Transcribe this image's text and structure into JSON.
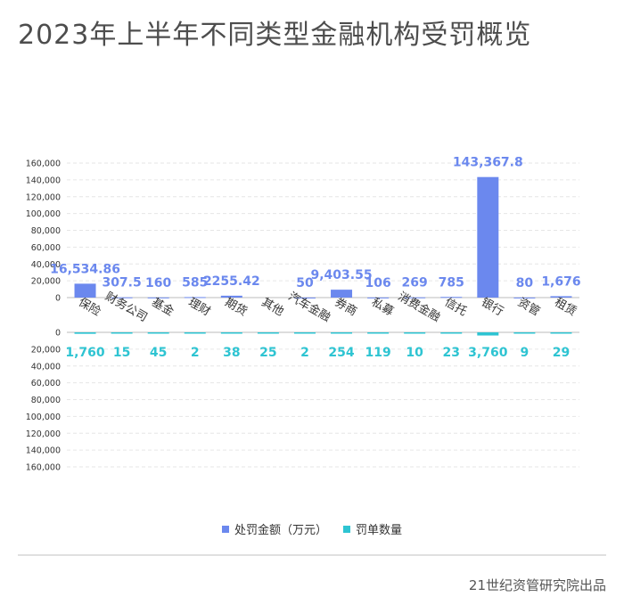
{
  "title": "2023年上半年不同类型金融机构受罚概览",
  "source": "21世纪资管研究院出品",
  "chart_data": {
    "type": "bar",
    "categories": [
      "保险",
      "财务公司",
      "基金",
      "理财",
      "期货",
      "其他",
      "汽车金融",
      "券商",
      "私募",
      "消费金融",
      "信托",
      "银行",
      "资管",
      "租赁"
    ],
    "series": [
      {
        "name": "处罚金额（万元）",
        "color": "#6b88ee",
        "values": [
          16534.86,
          307.5,
          160,
          585,
          2255.42,
          0,
          50,
          9403.55,
          106,
          269,
          785,
          143367.8,
          80,
          1676
        ],
        "labels": [
          "16,534.86",
          "307.5",
          "160",
          "585",
          "2255.42",
          "",
          "50",
          "9,403.55",
          "106",
          "269",
          "785",
          "143,367.8",
          "80",
          "1,676"
        ]
      },
      {
        "name": "罚单数量",
        "color": "#2ec4d2",
        "values": [
          1760,
          15,
          45,
          2,
          38,
          25,
          2,
          254,
          119,
          10,
          23,
          3760,
          9,
          29
        ],
        "labels": [
          "1,760",
          "15",
          "45",
          "2",
          "38",
          "25",
          "2",
          "254",
          "119",
          "10",
          "23",
          "3,760",
          "9",
          "29"
        ]
      }
    ],
    "top_axis": {
      "ylim": [
        0,
        160000
      ],
      "ticks": [
        "0",
        "20,000",
        "40,000",
        "60,000",
        "80,000",
        "100,000",
        "120,000",
        "140,000",
        "160,000"
      ]
    },
    "bottom_axis": {
      "ylim": [
        0,
        160000
      ],
      "ticks": [
        "0",
        "20,000",
        "40,000",
        "60,000",
        "80,000",
        "100,000",
        "120,000",
        "140,000",
        "160,000"
      ]
    },
    "grid": true,
    "legend_position": "bottom"
  }
}
